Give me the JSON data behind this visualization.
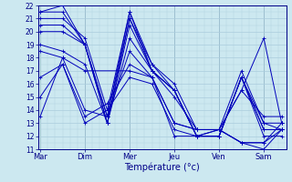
{
  "bg_color": "#cce8f0",
  "grid_color": "#aaccdd",
  "line_color": "#0000bb",
  "marker_color": "#0000bb",
  "x_labels": [
    "Mar",
    "Dim",
    "Mer",
    "Jeu",
    "Ven",
    "Sam"
  ],
  "xlabel": "Température (°c)",
  "ylim": [
    11,
    22
  ],
  "yticks": [
    11,
    12,
    13,
    14,
    15,
    16,
    17,
    18,
    19,
    20,
    21,
    22
  ],
  "series": [
    {
      "x": [
        0.0,
        0.5,
        1.0,
        1.5,
        2.0,
        2.5,
        3.0,
        3.5,
        4.0,
        4.5,
        5.0,
        5.4
      ],
      "y": [
        21.5,
        22.0,
        19.0,
        13.0,
        21.0,
        17.5,
        15.5,
        12.0,
        12.0,
        16.5,
        13.0,
        12.5
      ]
    },
    {
      "x": [
        0.0,
        0.5,
        1.0,
        1.5,
        2.0,
        2.5,
        3.0,
        3.5,
        4.0,
        4.5,
        5.0,
        5.4
      ],
      "y": [
        21.5,
        21.5,
        19.0,
        13.5,
        21.5,
        17.0,
        15.5,
        12.0,
        12.0,
        16.5,
        12.5,
        12.5
      ]
    },
    {
      "x": [
        0.0,
        0.5,
        1.0,
        1.5,
        2.0,
        2.5,
        3.0,
        3.5,
        4.0,
        4.5,
        5.0,
        5.4
      ],
      "y": [
        21.0,
        21.0,
        19.5,
        14.0,
        21.5,
        17.5,
        16.0,
        12.5,
        12.5,
        17.0,
        13.0,
        13.0
      ]
    },
    {
      "x": [
        0.0,
        0.5,
        1.0,
        1.5,
        2.0,
        2.5,
        3.0,
        3.5,
        4.0,
        4.5,
        5.0,
        5.4
      ],
      "y": [
        20.5,
        20.5,
        19.0,
        13.5,
        21.0,
        17.0,
        15.5,
        12.0,
        12.0,
        16.5,
        12.5,
        12.5
      ]
    },
    {
      "x": [
        0.0,
        0.5,
        1.0,
        1.5,
        2.0,
        2.5,
        3.0,
        3.5,
        4.0,
        4.5,
        5.0,
        5.4
      ],
      "y": [
        20.0,
        20.0,
        19.0,
        13.0,
        20.5,
        17.0,
        15.5,
        12.0,
        12.0,
        16.5,
        12.0,
        12.0
      ]
    },
    {
      "x": [
        0.0,
        0.5,
        1.0,
        1.5,
        2.0,
        2.5,
        3.0,
        3.5,
        4.0,
        4.5,
        5.0,
        5.4
      ],
      "y": [
        19.0,
        18.5,
        17.5,
        13.0,
        19.5,
        17.0,
        15.0,
        12.5,
        12.5,
        15.5,
        13.5,
        13.5
      ]
    },
    {
      "x": [
        0.0,
        0.5,
        1.0,
        1.5,
        2.0,
        2.5,
        3.0,
        3.5,
        4.0,
        4.5,
        5.0,
        5.4
      ],
      "y": [
        15.0,
        17.5,
        13.0,
        14.0,
        16.5,
        16.0,
        12.5,
        12.0,
        12.5,
        11.5,
        11.0,
        12.5
      ]
    },
    {
      "x": [
        0.0,
        0.5,
        1.0,
        1.5,
        2.0,
        2.5,
        3.0,
        3.5,
        4.0,
        4.5,
        5.0,
        5.4
      ],
      "y": [
        18.5,
        18.0,
        14.0,
        13.5,
        18.5,
        16.5,
        13.0,
        12.5,
        12.5,
        11.5,
        11.5,
        13.0
      ]
    },
    {
      "x": [
        0.0,
        0.5,
        1.0,
        1.5,
        2.0,
        2.5,
        3.0,
        3.5,
        4.0,
        4.5,
        5.0,
        5.4
      ],
      "y": [
        16.5,
        17.5,
        13.5,
        14.5,
        17.5,
        16.5,
        13.0,
        12.5,
        12.5,
        11.5,
        11.5,
        12.5
      ]
    },
    {
      "x": [
        0.0,
        0.5,
        1.0,
        2.0,
        2.5,
        3.0,
        3.5,
        4.0,
        4.5,
        5.0,
        5.4
      ],
      "y": [
        13.5,
        18.0,
        17.0,
        17.0,
        16.5,
        12.0,
        12.0,
        12.5,
        15.5,
        19.5,
        13.0
      ]
    }
  ],
  "x_tick_pos": [
    0.0,
    1.0,
    2.0,
    3.0,
    4.0,
    5.0
  ],
  "xlim": [
    -0.05,
    5.5
  ]
}
